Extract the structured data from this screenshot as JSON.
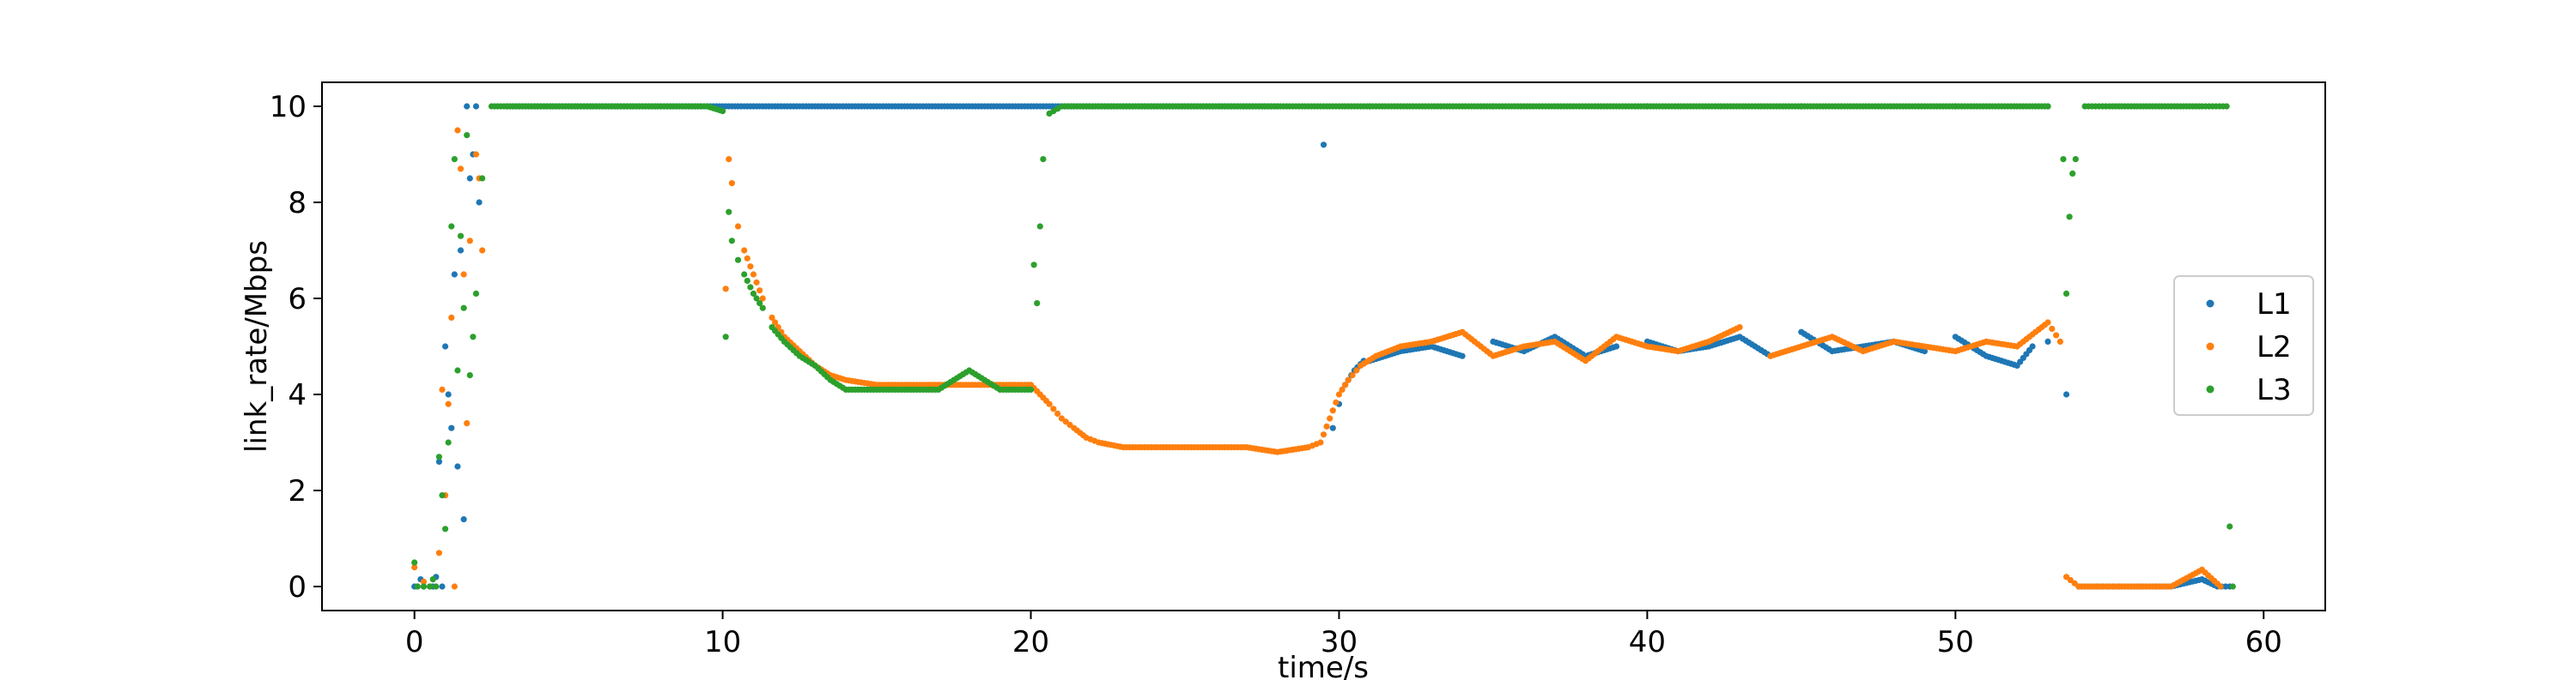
{
  "chart_data": {
    "type": "scatter",
    "xlabel": "time/s",
    "ylabel": "link_rate/Mbps",
    "xlim": [
      -3,
      62
    ],
    "ylim": [
      -0.5,
      10.5
    ],
    "xticks": [
      0,
      10,
      20,
      30,
      40,
      50,
      60
    ],
    "yticks": [
      0,
      2,
      4,
      6,
      8,
      10
    ],
    "grid": false,
    "legend_position": "right",
    "series": [
      {
        "name": "L1",
        "color": "#1f77b4",
        "points": [
          [
            0.0,
            0.0
          ],
          [
            0.1,
            0.0
          ],
          [
            0.2,
            0.15
          ],
          [
            0.3,
            0.0
          ],
          [
            0.5,
            0.0
          ],
          [
            0.6,
            0.0
          ],
          [
            0.7,
            0.2
          ],
          [
            0.8,
            2.6
          ],
          [
            0.9,
            0.0
          ],
          [
            1.0,
            5.0
          ],
          [
            1.1,
            4.0
          ],
          [
            1.2,
            3.3
          ],
          [
            1.3,
            6.5
          ],
          [
            1.4,
            2.5
          ],
          [
            1.5,
            7.0
          ],
          [
            1.6,
            1.4
          ],
          [
            1.7,
            10.0
          ],
          [
            1.8,
            8.5
          ],
          [
            1.9,
            9.0
          ],
          [
            2.0,
            10.0
          ],
          [
            2.1,
            8.0
          ],
          [
            3,
            10
          ],
          [
            5,
            10
          ],
          [
            7,
            10
          ],
          [
            9,
            10
          ],
          [
            10.5,
            10
          ],
          [
            12,
            10
          ],
          [
            14,
            10
          ],
          [
            16,
            10
          ],
          [
            18,
            10
          ],
          [
            20,
            10
          ],
          [
            22,
            10
          ],
          [
            24,
            10
          ],
          [
            26,
            10
          ],
          [
            28,
            10
          ],
          [
            29.5,
            9.2
          ],
          [
            31,
            10
          ],
          [
            35,
            10
          ],
          [
            40,
            10
          ],
          [
            45,
            10
          ],
          [
            50,
            10
          ],
          [
            53,
            10
          ],
          [
            29.8,
            3.3
          ],
          [
            30.0,
            3.8
          ],
          [
            30.2,
            4.2
          ],
          [
            30.5,
            4.5
          ],
          [
            30.8,
            4.7
          ],
          [
            31.0,
            4.7
          ],
          [
            31.5,
            4.8
          ],
          [
            32.0,
            4.9
          ],
          [
            33,
            5.0
          ],
          [
            34,
            4.8
          ],
          [
            35,
            5.1
          ],
          [
            36,
            4.9
          ],
          [
            37,
            5.2
          ],
          [
            38,
            4.8
          ],
          [
            39,
            5.0
          ],
          [
            40,
            5.1
          ],
          [
            41,
            4.9
          ],
          [
            42,
            5.0
          ],
          [
            43,
            5.2
          ],
          [
            44,
            4.8
          ],
          [
            45,
            5.3
          ],
          [
            46,
            4.9
          ],
          [
            47,
            5.0
          ],
          [
            48,
            5.1
          ],
          [
            49,
            4.9
          ],
          [
            50,
            5.2
          ],
          [
            51,
            4.8
          ],
          [
            52,
            4.6
          ],
          [
            52.5,
            5.0
          ],
          [
            53,
            5.1
          ],
          [
            53.6,
            4.0
          ],
          [
            54,
            0.0
          ],
          [
            55,
            0.0
          ],
          [
            56,
            0.0
          ],
          [
            57,
            0.0
          ],
          [
            58,
            0.15
          ],
          [
            58.5,
            0.0
          ],
          [
            58.9,
            0.0
          ]
        ]
      },
      {
        "name": "L2",
        "color": "#ff7f0e",
        "points": [
          [
            0.0,
            0.4
          ],
          [
            0.3,
            0.1
          ],
          [
            0.5,
            0.0
          ],
          [
            0.8,
            0.7
          ],
          [
            0.9,
            4.1
          ],
          [
            1.0,
            1.9
          ],
          [
            1.1,
            3.8
          ],
          [
            1.2,
            5.6
          ],
          [
            1.3,
            0.0
          ],
          [
            1.4,
            9.5
          ],
          [
            1.5,
            8.7
          ],
          [
            1.6,
            6.5
          ],
          [
            1.7,
            3.4
          ],
          [
            1.8,
            7.2
          ],
          [
            2.0,
            9.0
          ],
          [
            2.1,
            8.5
          ],
          [
            2.2,
            7.0
          ],
          [
            10.1,
            6.2
          ],
          [
            10.2,
            8.9
          ],
          [
            10.3,
            8.4
          ],
          [
            10.5,
            7.5
          ],
          [
            10.7,
            7.0
          ],
          [
            11.0,
            6.5
          ],
          [
            11.3,
            6.0
          ],
          [
            11.6,
            5.6
          ],
          [
            12.0,
            5.2
          ],
          [
            12.5,
            4.9
          ],
          [
            13.0,
            4.6
          ],
          [
            13.5,
            4.4
          ],
          [
            14.0,
            4.3
          ],
          [
            15,
            4.2
          ],
          [
            16,
            4.2
          ],
          [
            17,
            4.2
          ],
          [
            18,
            4.2
          ],
          [
            19,
            4.2
          ],
          [
            20,
            4.2
          ],
          [
            20.3,
            4.0
          ],
          [
            20.6,
            3.8
          ],
          [
            21.0,
            3.5
          ],
          [
            21.4,
            3.3
          ],
          [
            21.8,
            3.1
          ],
          [
            22.2,
            3.0
          ],
          [
            23,
            2.9
          ],
          [
            24,
            2.9
          ],
          [
            25,
            2.9
          ],
          [
            26,
            2.9
          ],
          [
            27,
            2.9
          ],
          [
            28,
            2.8
          ],
          [
            29,
            2.9
          ],
          [
            29.4,
            3.0
          ],
          [
            29.7,
            3.5
          ],
          [
            30.0,
            4.0
          ],
          [
            30.3,
            4.3
          ],
          [
            30.7,
            4.6
          ],
          [
            31.2,
            4.8
          ],
          [
            32,
            5.0
          ],
          [
            33,
            5.1
          ],
          [
            34,
            5.3
          ],
          [
            35,
            4.8
          ],
          [
            36,
            5.0
          ],
          [
            37,
            5.1
          ],
          [
            38,
            4.7
          ],
          [
            39,
            5.2
          ],
          [
            40,
            5.0
          ],
          [
            41,
            4.9
          ],
          [
            42,
            5.1
          ],
          [
            43,
            5.4
          ],
          [
            44,
            4.8
          ],
          [
            45,
            5.0
          ],
          [
            46,
            5.2
          ],
          [
            47,
            4.9
          ],
          [
            48,
            5.1
          ],
          [
            49,
            5.0
          ],
          [
            50,
            4.9
          ],
          [
            51,
            5.1
          ],
          [
            52,
            5.0
          ],
          [
            53,
            5.5
          ],
          [
            53.4,
            5.1
          ],
          [
            53.6,
            0.2
          ],
          [
            54,
            0.0
          ],
          [
            55,
            0.0
          ],
          [
            56,
            0.0
          ],
          [
            57,
            0.0
          ],
          [
            58,
            0.35
          ],
          [
            58.6,
            0.0
          ]
        ]
      },
      {
        "name": "L3",
        "color": "#2ca02c",
        "points": [
          [
            0.0,
            0.5
          ],
          [
            0.1,
            0.0
          ],
          [
            0.3,
            0.0
          ],
          [
            0.5,
            0.0
          ],
          [
            0.6,
            0.15
          ],
          [
            0.7,
            0.0
          ],
          [
            0.8,
            2.7
          ],
          [
            0.9,
            1.9
          ],
          [
            1.0,
            1.2
          ],
          [
            1.1,
            3.0
          ],
          [
            1.2,
            7.5
          ],
          [
            1.3,
            8.9
          ],
          [
            1.4,
            4.5
          ],
          [
            1.5,
            7.3
          ],
          [
            1.6,
            5.8
          ],
          [
            1.7,
            9.4
          ],
          [
            1.8,
            4.4
          ],
          [
            1.9,
            5.2
          ],
          [
            2.0,
            6.1
          ],
          [
            2.2,
            8.5
          ],
          [
            2.5,
            10
          ],
          [
            4,
            10
          ],
          [
            6,
            10
          ],
          [
            8,
            10
          ],
          [
            9.5,
            10
          ],
          [
            10.0,
            9.9
          ],
          [
            10.1,
            5.2
          ],
          [
            10.2,
            7.8
          ],
          [
            10.3,
            7.2
          ],
          [
            10.5,
            6.8
          ],
          [
            10.7,
            6.5
          ],
          [
            11.0,
            6.1
          ],
          [
            11.3,
            5.8
          ],
          [
            11.6,
            5.4
          ],
          [
            12.0,
            5.1
          ],
          [
            12.5,
            4.8
          ],
          [
            13.0,
            4.6
          ],
          [
            13.5,
            4.3
          ],
          [
            14,
            4.1
          ],
          [
            15,
            4.1
          ],
          [
            16,
            4.1
          ],
          [
            17,
            4.1
          ],
          [
            18,
            4.5
          ],
          [
            19,
            4.1
          ],
          [
            20,
            4.1
          ],
          [
            20.1,
            6.7
          ],
          [
            20.2,
            5.9
          ],
          [
            20.3,
            7.5
          ],
          [
            20.4,
            8.9
          ],
          [
            20.6,
            9.85
          ],
          [
            21,
            10
          ],
          [
            23,
            10
          ],
          [
            25,
            10
          ],
          [
            27,
            10
          ],
          [
            29,
            10
          ],
          [
            31,
            10
          ],
          [
            33,
            10
          ],
          [
            35,
            10
          ],
          [
            37,
            10
          ],
          [
            39,
            10
          ],
          [
            41,
            10
          ],
          [
            43,
            10
          ],
          [
            45,
            10
          ],
          [
            47,
            10
          ],
          [
            49,
            10
          ],
          [
            51,
            10
          ],
          [
            53,
            10
          ],
          [
            53.5,
            8.9
          ],
          [
            53.6,
            6.1
          ],
          [
            53.7,
            7.7
          ],
          [
            53.8,
            8.6
          ],
          [
            53.9,
            8.9
          ],
          [
            54.2,
            10
          ],
          [
            55,
            10
          ],
          [
            56,
            10
          ],
          [
            57,
            10
          ],
          [
            58,
            10
          ],
          [
            58.8,
            10
          ],
          [
            58.9,
            1.25
          ],
          [
            59.0,
            0.0
          ]
        ]
      }
    ]
  }
}
